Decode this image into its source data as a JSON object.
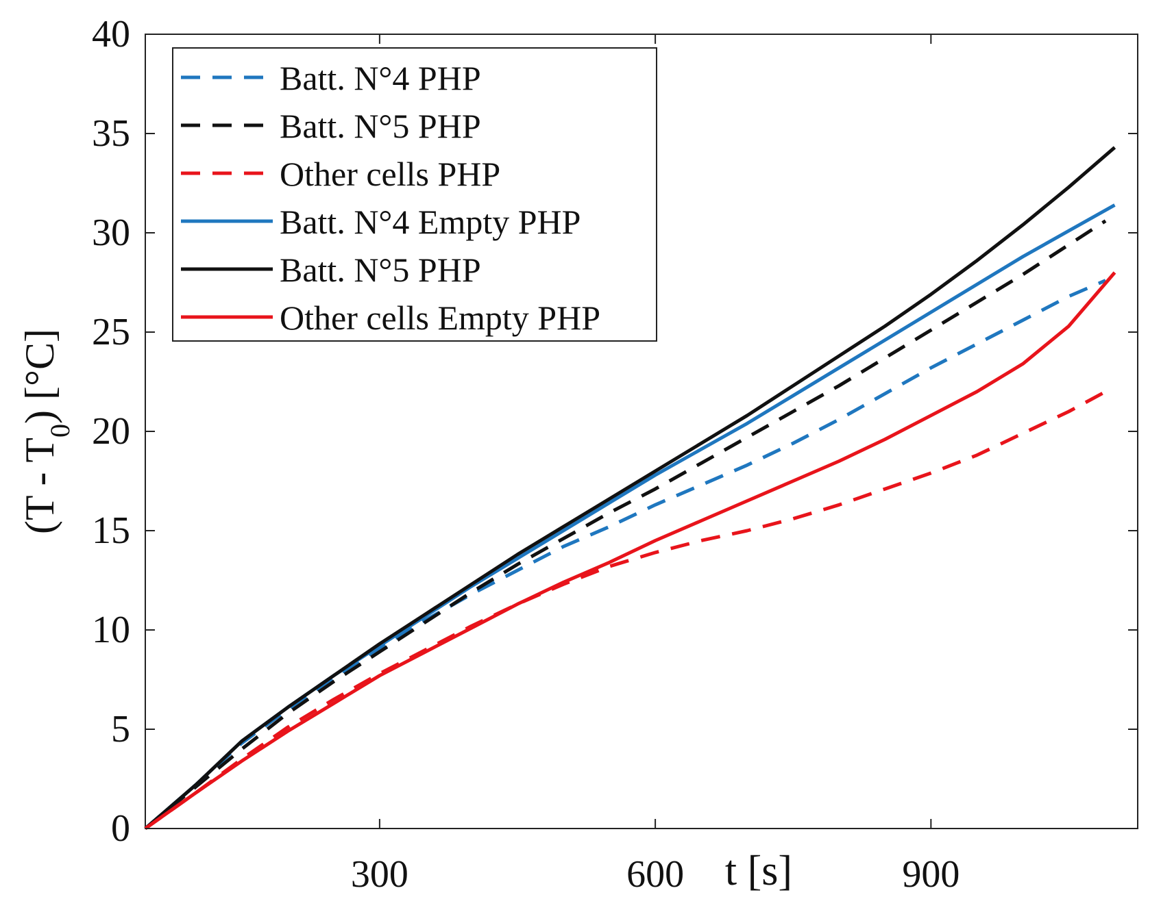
{
  "chart_data": {
    "type": "line",
    "title": "",
    "xlabel": "t [s]",
    "ylabel_parts": {
      "prefix": "(T - T",
      "subscript": "0",
      "suffix": ") [°C]"
    },
    "xlim": [
      45,
      1125
    ],
    "ylim": [
      0,
      40
    ],
    "xticks": [
      300,
      600,
      900
    ],
    "xtick_labels": [
      "300",
      "600",
      "900"
    ],
    "yticks": [
      0,
      5,
      10,
      15,
      20,
      25,
      30,
      35,
      40
    ],
    "ytick_labels": [
      "0",
      "5",
      "10",
      "15",
      "20",
      "25",
      "30",
      "35",
      "40"
    ],
    "grid": false,
    "legend_position": "top-left",
    "series": [
      {
        "name": "Batt. N°4 PHP",
        "color": "#1f77bf",
        "dash": "dashed",
        "x": [
          45,
          100,
          150,
          200,
          250,
          300,
          350,
          400,
          450,
          500,
          550,
          600,
          650,
          700,
          750,
          800,
          850,
          900,
          950,
          1000,
          1050,
          1090
        ],
        "y": [
          0,
          2.2,
          4.3,
          6.0,
          7.6,
          9.1,
          10.5,
          11.8,
          13.0,
          14.2,
          15.2,
          16.3,
          17.3,
          18.3,
          19.4,
          20.6,
          21.9,
          23.2,
          24.4,
          25.6,
          26.8,
          27.6
        ]
      },
      {
        "name": "Batt. N°5 PHP",
        "color": "#111111",
        "dash": "dashed",
        "x": [
          45,
          100,
          150,
          200,
          250,
          300,
          350,
          400,
          450,
          500,
          550,
          600,
          650,
          700,
          750,
          800,
          850,
          900,
          950,
          1000,
          1050,
          1090
        ],
        "y": [
          0,
          2.1,
          4.0,
          5.8,
          7.4,
          8.9,
          10.4,
          11.9,
          13.3,
          14.6,
          15.9,
          17.1,
          18.4,
          19.7,
          21.0,
          22.3,
          23.7,
          25.1,
          26.5,
          27.9,
          29.4,
          30.6
        ]
      },
      {
        "name": "Other cells PHP",
        "color": "#e8141b",
        "dash": "dashed",
        "x": [
          45,
          100,
          150,
          200,
          250,
          300,
          350,
          400,
          450,
          500,
          550,
          600,
          650,
          700,
          750,
          800,
          850,
          900,
          950,
          1000,
          1050,
          1090
        ],
        "y": [
          0,
          1.8,
          3.5,
          5.1,
          6.5,
          7.8,
          9.0,
          10.2,
          11.3,
          12.3,
          13.2,
          13.9,
          14.5,
          15.0,
          15.6,
          16.3,
          17.1,
          17.9,
          18.8,
          19.9,
          21.0,
          22.0
        ]
      },
      {
        "name": "Batt. N°4 Empty PHP",
        "color": "#1f77bf",
        "dash": "solid",
        "x": [
          45,
          100,
          150,
          200,
          250,
          300,
          350,
          400,
          450,
          500,
          550,
          600,
          650,
          700,
          750,
          800,
          850,
          900,
          950,
          1000,
          1050,
          1100
        ],
        "y": [
          0,
          2.2,
          4.4,
          6.1,
          7.7,
          9.2,
          10.7,
          12.2,
          13.6,
          15.0,
          16.4,
          17.8,
          19.1,
          20.4,
          21.8,
          23.2,
          24.6,
          26.0,
          27.4,
          28.8,
          30.1,
          31.4
        ]
      },
      {
        "name": "Batt. N°5  PHP",
        "color": "#111111",
        "dash": "solid",
        "x": [
          45,
          100,
          150,
          200,
          250,
          300,
          350,
          400,
          450,
          500,
          550,
          600,
          650,
          700,
          750,
          800,
          850,
          900,
          950,
          1000,
          1050,
          1100
        ],
        "y": [
          0,
          2.2,
          4.4,
          6.1,
          7.7,
          9.3,
          10.8,
          12.3,
          13.8,
          15.2,
          16.6,
          18.0,
          19.4,
          20.8,
          22.3,
          23.8,
          25.3,
          26.9,
          28.6,
          30.4,
          32.3,
          34.3
        ]
      },
      {
        "name": "Other cells Empty PHP",
        "color": "#e8141b",
        "dash": "solid",
        "x": [
          45,
          100,
          150,
          200,
          250,
          300,
          350,
          400,
          450,
          500,
          550,
          600,
          650,
          700,
          750,
          800,
          850,
          900,
          950,
          1000,
          1050,
          1100
        ],
        "y": [
          0,
          1.8,
          3.4,
          4.9,
          6.3,
          7.7,
          8.9,
          10.1,
          11.3,
          12.4,
          13.4,
          14.5,
          15.5,
          16.5,
          17.5,
          18.5,
          19.6,
          20.8,
          22.0,
          23.4,
          25.3,
          28.0
        ]
      }
    ]
  }
}
